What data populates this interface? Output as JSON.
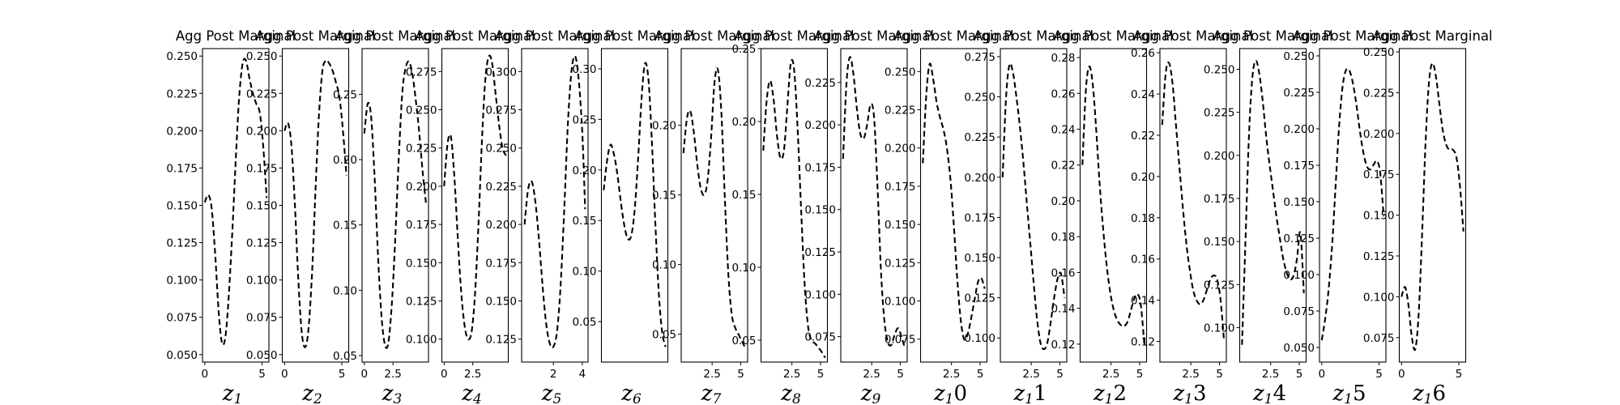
{
  "chart_data": [
    {
      "type": "line",
      "title": "Agg Post Marginal",
      "xlabel": "z",
      "xsub": "1",
      "xlim": [
        -0.2,
        5.6
      ],
      "ylim": [
        0.045,
        0.255
      ],
      "xticks": [
        0,
        5
      ],
      "yticks": [
        0.05,
        0.075,
        0.1,
        0.125,
        0.15,
        0.175,
        0.2,
        0.225,
        0.25
      ],
      "ytick_decimals": 3,
      "x": [
        0,
        0.3,
        0.6,
        0.9,
        1.2,
        1.5,
        1.8,
        2.1,
        2.4,
        2.7,
        3.0,
        3.3,
        3.6,
        3.9,
        4.2,
        4.5,
        4.8,
        5.1,
        5.4
      ],
      "y": [
        0.152,
        0.157,
        0.148,
        0.118,
        0.08,
        0.058,
        0.062,
        0.09,
        0.132,
        0.18,
        0.222,
        0.245,
        0.247,
        0.235,
        0.225,
        0.218,
        0.212,
        0.19,
        0.155
      ]
    },
    {
      "type": "line",
      "title": "Agg Post Marginal",
      "xlabel": "z",
      "xsub": "2",
      "xlim": [
        -0.2,
        5.6
      ],
      "ylim": [
        0.045,
        0.255
      ],
      "xticks": [
        0,
        5
      ],
      "yticks": [
        0.05,
        0.075,
        0.1,
        0.125,
        0.15,
        0.175,
        0.2,
        0.225,
        0.25
      ],
      "ytick_decimals": 3,
      "x": [
        0,
        0.3,
        0.6,
        0.9,
        1.2,
        1.5,
        1.8,
        2.1,
        2.4,
        2.7,
        3.0,
        3.3,
        3.6,
        3.9,
        4.2,
        4.5,
        4.8,
        5.1,
        5.4
      ],
      "y": [
        0.2,
        0.205,
        0.19,
        0.15,
        0.1,
        0.065,
        0.055,
        0.068,
        0.105,
        0.16,
        0.21,
        0.24,
        0.247,
        0.245,
        0.24,
        0.232,
        0.222,
        0.2,
        0.17
      ]
    },
    {
      "type": "line",
      "title": "Agg Post Marginal",
      "xlabel": "z",
      "xsub": "3",
      "xlim": [
        -0.2,
        5.6
      ],
      "ylim": [
        0.045,
        0.285
      ],
      "xticks": [
        0.0,
        2.5
      ],
      "yticks": [
        0.05,
        0.1,
        0.15,
        0.2,
        0.25
      ],
      "ytick_decimals": 2,
      "x": [
        0,
        0.3,
        0.6,
        0.9,
        1.2,
        1.5,
        1.8,
        2.1,
        2.4,
        2.7,
        3.0,
        3.3,
        3.6,
        3.9,
        4.2,
        4.5,
        4.8,
        5.1,
        5.4
      ],
      "y": [
        0.22,
        0.243,
        0.232,
        0.185,
        0.125,
        0.08,
        0.058,
        0.06,
        0.09,
        0.14,
        0.2,
        0.25,
        0.27,
        0.275,
        0.265,
        0.245,
        0.22,
        0.19,
        0.165
      ]
    },
    {
      "type": "line",
      "title": "Agg Post Marginal",
      "xlabel": "z",
      "xsub": "4",
      "xlim": [
        -0.2,
        5.6
      ],
      "ylim": [
        0.085,
        0.29
      ],
      "xticks": [
        0.0,
        2.5
      ],
      "yticks": [
        0.1,
        0.125,
        0.15,
        0.175,
        0.2,
        0.225,
        0.25,
        0.275
      ],
      "ytick_decimals": 3,
      "x": [
        0,
        0.3,
        0.6,
        0.9,
        1.2,
        1.5,
        1.8,
        2.1,
        2.4,
        2.7,
        3.0,
        3.3,
        3.6,
        3.9,
        4.2,
        4.5,
        4.8,
        5.1,
        5.4
      ],
      "y": [
        0.2,
        0.228,
        0.232,
        0.205,
        0.165,
        0.13,
        0.108,
        0.1,
        0.105,
        0.13,
        0.175,
        0.23,
        0.27,
        0.285,
        0.28,
        0.26,
        0.24,
        0.225,
        0.22
      ]
    },
    {
      "type": "line",
      "title": "Agg Post Marginal",
      "xlabel": "z",
      "xsub": "5",
      "xlim": [
        -0.2,
        4.4
      ],
      "ylim": [
        0.11,
        0.315
      ],
      "xticks": [
        2,
        4
      ],
      "yticks": [
        0.125,
        0.15,
        0.175,
        0.2,
        0.225,
        0.25,
        0.275,
        0.3
      ],
      "ytick_decimals": 3,
      "x": [
        0,
        0.25,
        0.5,
        0.75,
        1.0,
        1.25,
        1.5,
        1.75,
        2.0,
        2.25,
        2.5,
        2.75,
        3.0,
        3.25,
        3.5,
        3.75,
        4.0,
        4.2
      ],
      "y": [
        0.2,
        0.223,
        0.228,
        0.215,
        0.19,
        0.16,
        0.135,
        0.122,
        0.12,
        0.13,
        0.16,
        0.21,
        0.265,
        0.3,
        0.31,
        0.295,
        0.26,
        0.21
      ]
    },
    {
      "type": "line",
      "title": "Agg Post Marginal",
      "xlabel": "z",
      "xsub": "6",
      "xlim": [
        -0.2,
        5.6
      ],
      "ylim": [
        0.01,
        0.32
      ],
      "xticks": [],
      "yticks": [
        0.05,
        0.1,
        0.15,
        0.2,
        0.25,
        0.3
      ],
      "ytick_decimals": 2,
      "x": [
        0,
        0.3,
        0.6,
        0.9,
        1.2,
        1.5,
        1.8,
        2.1,
        2.4,
        2.7,
        3.0,
        3.3,
        3.6,
        3.9,
        4.2,
        4.5,
        4.8,
        5.1,
        5.4
      ],
      "y": [
        0.18,
        0.21,
        0.225,
        0.215,
        0.195,
        0.168,
        0.145,
        0.132,
        0.135,
        0.16,
        0.21,
        0.27,
        0.305,
        0.29,
        0.23,
        0.15,
        0.08,
        0.04,
        0.025
      ]
    },
    {
      "type": "line",
      "title": "Agg Post Marginal",
      "xlabel": "z",
      "xsub": "7",
      "xlim": [
        -0.2,
        5.6
      ],
      "ylim": [
        0.03,
        0.255
      ],
      "xticks": [
        2.5,
        5.0
      ],
      "yticks": [
        0.05,
        0.1,
        0.15,
        0.2
      ],
      "ytick_decimals": 2,
      "x": [
        0,
        0.3,
        0.6,
        0.9,
        1.2,
        1.5,
        1.8,
        2.1,
        2.4,
        2.7,
        3.0,
        3.3,
        3.6,
        3.9,
        4.2,
        4.5,
        4.8,
        5.1,
        5.4
      ],
      "y": [
        0.18,
        0.205,
        0.21,
        0.195,
        0.172,
        0.155,
        0.15,
        0.16,
        0.19,
        0.23,
        0.24,
        0.21,
        0.15,
        0.095,
        0.065,
        0.055,
        0.05,
        0.045,
        0.04
      ]
    },
    {
      "type": "line",
      "title": "Agg Post Marginal",
      "xlabel": "z",
      "xsub": "8",
      "xlim": [
        -0.2,
        5.6
      ],
      "ylim": [
        0.035,
        0.25
      ],
      "xticks": [
        2.5,
        5.0
      ],
      "yticks": [
        0.05,
        0.1,
        0.15,
        0.2,
        0.25
      ],
      "ytick_decimals": 2,
      "x": [
        0,
        0.3,
        0.6,
        0.9,
        1.2,
        1.5,
        1.8,
        2.1,
        2.4,
        2.7,
        3.0,
        3.3,
        3.6,
        3.9,
        4.2,
        4.5,
        4.8,
        5.1,
        5.4
      ],
      "y": [
        0.18,
        0.215,
        0.228,
        0.215,
        0.19,
        0.175,
        0.18,
        0.21,
        0.24,
        0.235,
        0.195,
        0.14,
        0.09,
        0.06,
        0.05,
        0.048,
        0.045,
        0.042,
        0.038
      ]
    },
    {
      "type": "line",
      "title": "Agg Post Marginal",
      "xlabel": "z",
      "xsub": "9",
      "xlim": [
        -0.2,
        5.6
      ],
      "ylim": [
        0.06,
        0.245
      ],
      "xticks": [
        2.5,
        5.0
      ],
      "yticks": [
        0.075,
        0.1,
        0.125,
        0.15,
        0.175,
        0.2,
        0.225
      ],
      "ytick_decimals": 3,
      "x": [
        0,
        0.3,
        0.6,
        0.9,
        1.2,
        1.5,
        1.8,
        2.1,
        2.4,
        2.7,
        3.0,
        3.3,
        3.6,
        3.9,
        4.2,
        4.5,
        4.8,
        5.1,
        5.4
      ],
      "y": [
        0.18,
        0.225,
        0.24,
        0.23,
        0.21,
        0.195,
        0.192,
        0.2,
        0.212,
        0.205,
        0.165,
        0.115,
        0.085,
        0.072,
        0.07,
        0.076,
        0.08,
        0.075,
        0.068
      ]
    },
    {
      "type": "line",
      "title": "Agg Post Marginal",
      "xlabel": "z",
      "xsub": "1",
      "xsuffix": "0",
      "xlim": [
        -0.2,
        5.6
      ],
      "ylim": [
        0.06,
        0.265
      ],
      "xticks": [
        2.5,
        5.0
      ],
      "yticks": [
        0.075,
        0.1,
        0.125,
        0.15,
        0.175,
        0.2,
        0.225,
        0.25
      ],
      "ytick_decimals": 3,
      "x": [
        0,
        0.3,
        0.6,
        0.9,
        1.2,
        1.5,
        1.8,
        2.1,
        2.4,
        2.7,
        3.0,
        3.3,
        3.6,
        3.9,
        4.2,
        4.5,
        4.8,
        5.1,
        5.4
      ],
      "y": [
        0.19,
        0.235,
        0.255,
        0.245,
        0.23,
        0.22,
        0.212,
        0.2,
        0.18,
        0.15,
        0.115,
        0.088,
        0.075,
        0.078,
        0.088,
        0.1,
        0.112,
        0.115,
        0.108
      ]
    },
    {
      "type": "line",
      "title": "Agg Post Marginal",
      "xlabel": "z",
      "xsub": "1",
      "xsuffix": "1",
      "xlim": [
        -0.2,
        5.6
      ],
      "ylim": [
        0.085,
        0.28
      ],
      "xticks": [
        2.5,
        5.0
      ],
      "yticks": [
        0.1,
        0.125,
        0.15,
        0.175,
        0.2,
        0.225,
        0.25,
        0.275
      ],
      "ytick_decimals": 3,
      "x": [
        0,
        0.3,
        0.6,
        0.9,
        1.2,
        1.5,
        1.8,
        2.1,
        2.4,
        2.7,
        3.0,
        3.3,
        3.6,
        3.9,
        4.2,
        4.5,
        4.8,
        5.1,
        5.4
      ],
      "y": [
        0.2,
        0.25,
        0.27,
        0.265,
        0.25,
        0.232,
        0.21,
        0.185,
        0.16,
        0.135,
        0.112,
        0.097,
        0.093,
        0.097,
        0.11,
        0.125,
        0.137,
        0.14,
        0.125
      ]
    },
    {
      "type": "line",
      "title": "Agg Post Marginal",
      "xlabel": "z",
      "xsub": "1",
      "xsuffix": "2",
      "xlim": [
        -0.2,
        5.6
      ],
      "ylim": [
        0.11,
        0.285
      ],
      "xticks": [
        2.5,
        5.0
      ],
      "yticks": [
        0.12,
        0.14,
        0.16,
        0.18,
        0.2,
        0.22,
        0.24,
        0.26,
        0.28
      ],
      "ytick_decimals": 2,
      "x": [
        0,
        0.3,
        0.6,
        0.9,
        1.2,
        1.5,
        1.8,
        2.1,
        2.4,
        2.7,
        3.0,
        3.3,
        3.6,
        3.9,
        4.2,
        4.5,
        4.8,
        5.1,
        5.4
      ],
      "y": [
        0.22,
        0.262,
        0.275,
        0.265,
        0.24,
        0.21,
        0.185,
        0.165,
        0.15,
        0.14,
        0.134,
        0.131,
        0.13,
        0.132,
        0.138,
        0.145,
        0.148,
        0.142,
        0.12
      ]
    },
    {
      "type": "line",
      "title": "Agg Post Marginal",
      "xlabel": "z",
      "xsub": "1",
      "xsuffix": "3",
      "xlim": [
        -0.2,
        5.6
      ],
      "ylim": [
        0.11,
        0.262
      ],
      "xticks": [
        2.5,
        5.0
      ],
      "yticks": [
        0.12,
        0.14,
        0.16,
        0.18,
        0.2,
        0.22,
        0.24,
        0.26
      ],
      "ytick_decimals": 2,
      "x": [
        0,
        0.3,
        0.6,
        0.9,
        1.2,
        1.5,
        1.8,
        2.1,
        2.4,
        2.7,
        3.0,
        3.3,
        3.6,
        3.9,
        4.2,
        4.5,
        4.8,
        5.1,
        5.4
      ],
      "y": [
        0.225,
        0.25,
        0.255,
        0.245,
        0.225,
        0.205,
        0.185,
        0.168,
        0.155,
        0.145,
        0.14,
        0.138,
        0.14,
        0.145,
        0.15,
        0.152,
        0.15,
        0.14,
        0.12
      ]
    },
    {
      "type": "line",
      "title": "Agg Post Marginal",
      "xlabel": "z",
      "xsub": "1",
      "xsuffix": "4",
      "xlim": [
        -0.2,
        5.6
      ],
      "ylim": [
        0.08,
        0.262
      ],
      "xticks": [
        2.5,
        5.0
      ],
      "yticks": [
        0.1,
        0.125,
        0.15,
        0.175,
        0.2,
        0.225,
        0.25
      ],
      "ytick_decimals": 3,
      "x": [
        0,
        0.3,
        0.6,
        0.9,
        1.2,
        1.5,
        1.8,
        2.1,
        2.4,
        2.7,
        3.0,
        3.3,
        3.6,
        3.9,
        4.2,
        4.5,
        4.8,
        5.1,
        5.4
      ],
      "y": [
        0.09,
        0.15,
        0.21,
        0.245,
        0.255,
        0.248,
        0.232,
        0.212,
        0.195,
        0.18,
        0.165,
        0.152,
        0.14,
        0.132,
        0.128,
        0.13,
        0.14,
        0.155,
        0.12
      ]
    },
    {
      "type": "line",
      "title": "Agg Post Marginal",
      "xlabel": "z",
      "xsub": "1",
      "xsuffix": "5",
      "xlim": [
        -0.2,
        5.6
      ],
      "ylim": [
        0.04,
        0.255
      ],
      "xticks": [
        0,
        5
      ],
      "yticks": [
        0.05,
        0.075,
        0.1,
        0.125,
        0.15,
        0.175,
        0.2,
        0.225,
        0.25
      ],
      "ytick_decimals": 3,
      "x": [
        0,
        0.3,
        0.6,
        0.9,
        1.2,
        1.5,
        1.8,
        2.1,
        2.4,
        2.7,
        3.0,
        3.3,
        3.6,
        3.9,
        4.2,
        4.5,
        4.8,
        5.1,
        5.4
      ],
      "y": [
        0.055,
        0.07,
        0.09,
        0.12,
        0.16,
        0.2,
        0.228,
        0.24,
        0.24,
        0.232,
        0.218,
        0.2,
        0.185,
        0.175,
        0.172,
        0.175,
        0.178,
        0.17,
        0.14
      ]
    },
    {
      "type": "line",
      "title": "Agg Post Marginal",
      "xlabel": "z",
      "xsub": "1",
      "xsuffix": "6",
      "xlim": [
        -0.2,
        5.6
      ],
      "ylim": [
        0.06,
        0.252
      ],
      "xticks": [
        0,
        5
      ],
      "yticks": [
        0.075,
        0.1,
        0.125,
        0.15,
        0.175,
        0.2,
        0.225,
        0.25
      ],
      "ytick_decimals": 3,
      "x": [
        0,
        0.3,
        0.6,
        0.9,
        1.2,
        1.5,
        1.8,
        2.1,
        2.4,
        2.7,
        3.0,
        3.3,
        3.6,
        3.9,
        4.2,
        4.5,
        4.8,
        5.1,
        5.4
      ],
      "y": [
        0.1,
        0.106,
        0.095,
        0.075,
        0.068,
        0.09,
        0.14,
        0.195,
        0.232,
        0.243,
        0.235,
        0.218,
        0.202,
        0.193,
        0.19,
        0.19,
        0.185,
        0.168,
        0.14
      ]
    }
  ]
}
